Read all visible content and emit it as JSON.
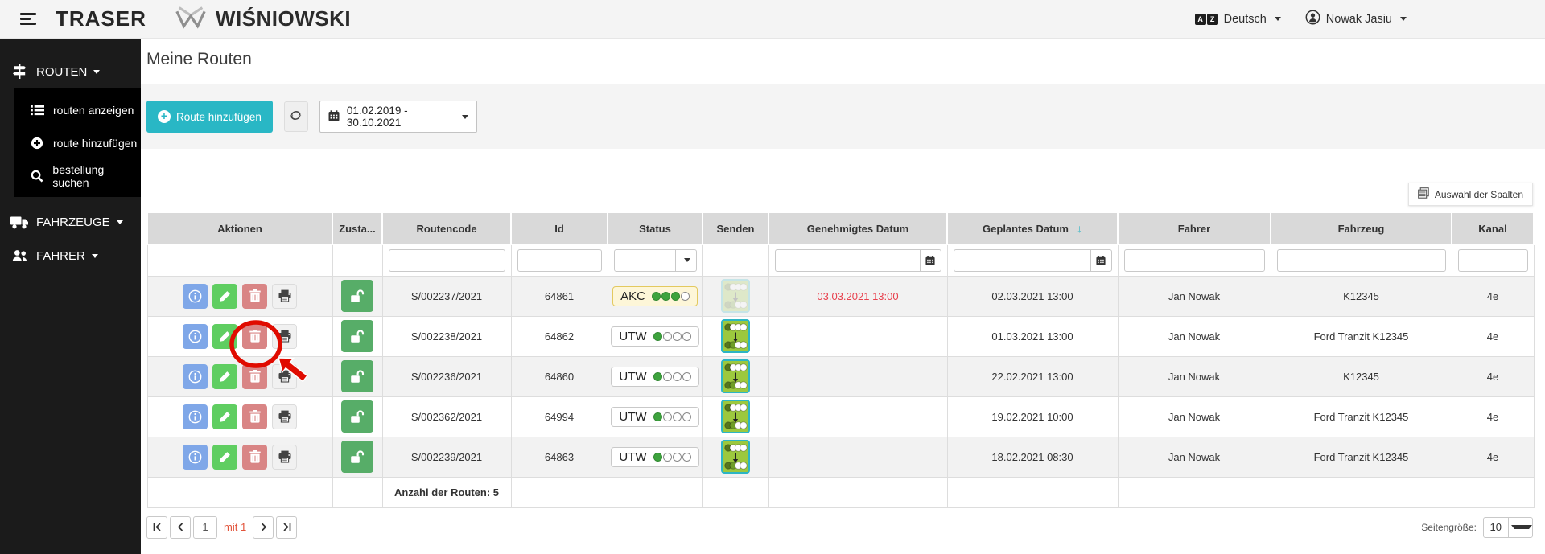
{
  "header": {
    "app_name": "TRASER",
    "brand": "WIŚNIOWSKI",
    "language": {
      "label": "Deutsch"
    },
    "user": {
      "name": "Nowak Jasiu"
    }
  },
  "sidebar": {
    "sections": [
      {
        "label": "ROUTEN",
        "icon": "signpost-icon",
        "expanded": true,
        "items": [
          {
            "label": "routen anzeigen",
            "icon": "list-icon"
          },
          {
            "label": "route hinzufügen",
            "icon": "plus-circle-icon"
          },
          {
            "label": "bestellung suchen",
            "icon": "search-icon"
          }
        ]
      },
      {
        "label": "FAHRZEUGE",
        "icon": "truck-icon",
        "expanded": false,
        "items": []
      },
      {
        "label": "FAHRER",
        "icon": "users-icon",
        "expanded": false,
        "items": []
      }
    ]
  },
  "page": {
    "title": "Meine Routen",
    "toolbar": {
      "add_route_label": "Route hinzufügen",
      "date_range": "01.02.2019 - 30.10.2021"
    },
    "column_chooser_label": "Auswahl der Spalten"
  },
  "table": {
    "columns": [
      "Aktionen",
      "Zusta...",
      "Routencode",
      "Id",
      "Status",
      "Senden",
      "Genehmigtes Datum",
      "Geplantes Datum",
      "Fahrer",
      "Fahrzeug",
      "Kanal"
    ],
    "sorted_column": "Geplantes Datum",
    "sort_direction": "desc",
    "rows": [
      {
        "routencode": "S/002237/2021",
        "id": "64861",
        "status": "AKC",
        "status_dots": 3,
        "senden_enabled": false,
        "genehmigtes_datum": "03.03.2021 13:00",
        "genehmigt_rot": true,
        "geplantes_datum": "02.03.2021 13:00",
        "fahrer": "Jan Nowak",
        "fahrzeug": "K12345",
        "kanal": "4e"
      },
      {
        "routencode": "S/002238/2021",
        "id": "64862",
        "status": "UTW",
        "status_dots": 1,
        "senden_enabled": true,
        "genehmigtes_datum": "",
        "genehmigt_rot": false,
        "geplantes_datum": "01.03.2021 13:00",
        "fahrer": "Jan Nowak",
        "fahrzeug": "Ford Tranzit K12345",
        "kanal": "4e"
      },
      {
        "routencode": "S/002236/2021",
        "id": "64860",
        "status": "UTW",
        "status_dots": 1,
        "senden_enabled": true,
        "genehmigtes_datum": "",
        "genehmigt_rot": false,
        "geplantes_datum": "22.02.2021 13:00",
        "fahrer": "Jan Nowak",
        "fahrzeug": "K12345",
        "kanal": "4e"
      },
      {
        "routencode": "S/002362/2021",
        "id": "64994",
        "status": "UTW",
        "status_dots": 1,
        "senden_enabled": true,
        "genehmigtes_datum": "",
        "genehmigt_rot": false,
        "geplantes_datum": "19.02.2021 10:00",
        "fahrer": "Jan Nowak",
        "fahrzeug": "Ford Tranzit K12345",
        "kanal": "4e"
      },
      {
        "routencode": "S/002239/2021",
        "id": "64863",
        "status": "UTW",
        "status_dots": 1,
        "senden_enabled": true,
        "genehmigtes_datum": "",
        "genehmigt_rot": false,
        "geplantes_datum": "18.02.2021 08:30",
        "fahrer": "Jan Nowak",
        "fahrzeug": "Ford Tranzit K12345",
        "kanal": "4e"
      }
    ],
    "footer": {
      "count_label": "Anzahl der Routen: 5"
    }
  },
  "pagination": {
    "page_value": "1",
    "of_label": "mit 1",
    "page_size_label": "Seitengröße:",
    "page_size_value": "10"
  },
  "annotation": {
    "shape": "red-ellipse-with-arrow",
    "color": "#e00b00",
    "target": "row-2-delete-button"
  },
  "colors": {
    "accent_teal": "#29b7c5",
    "sidebar_bg": "#1b1b1b",
    "submenu_bg": "#000000",
    "topbar_bg": "#f4f4f4",
    "header_cell_bg": "#d9d9d9",
    "row_alt_bg": "#f2f2f2",
    "info_button": "#7fa7e8",
    "edit_button": "#5fce61",
    "delete_button": "#d98585",
    "unlock_button": "#57ad68",
    "send_icon_bg": "#9cc83e",
    "send_icon_border": "#2cb5c4",
    "akc_badge_bg": "#fdf6d8",
    "akc_badge_border": "#e3c95f",
    "status_dot_green": "#3da33d",
    "date_red": "#e8414e",
    "pager_of_red": "#e2533a"
  }
}
